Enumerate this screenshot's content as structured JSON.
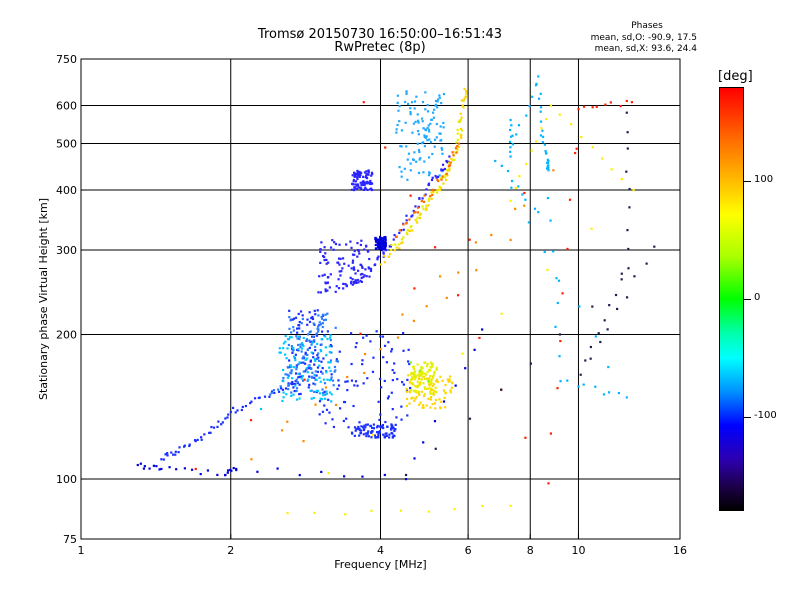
{
  "header": {
    "title_line1": "Tromsø 20150730 16:50:00–16:51:43",
    "title_line2": "RwPretec (8p)",
    "phases_title": "Phases",
    "stat_o": "mean, sd,O: -90.9, 17.5",
    "stat_x": "mean, sd,X:  93.6, 24.4"
  },
  "colorbar": {
    "unit": "[deg]",
    "tick_labels": [
      "100",
      "0",
      "-100"
    ],
    "tick_values": [
      100,
      0,
      -100
    ],
    "range": [
      -180,
      180
    ],
    "stops": [
      "#000000",
      "#2c00b0",
      "#0000ff",
      "#0090ff",
      "#00ffff",
      "#00ffaa",
      "#00ff00",
      "#a8ff00",
      "#ffff00",
      "#ffcc00",
      "#ff6a00",
      "#ff0000"
    ]
  },
  "chart_data": {
    "type": "scatter",
    "title": "Tromsø 20150730 16:50:00–16:51:43",
    "subtitle": "RwPretec (8p)",
    "xlabel": "Frequency [MHz]",
    "ylabel": "Stationary phase Virtual Height [km]",
    "x_scale": "log",
    "y_scale": "log",
    "xlim": [
      1,
      16
    ],
    "ylim": [
      75,
      750
    ],
    "x_ticks": [
      1,
      2,
      4,
      6,
      8,
      10,
      16
    ],
    "y_ticks": [
      75,
      100,
      200,
      300,
      400,
      500,
      600,
      750
    ],
    "x_gridlines": [
      2,
      4,
      6,
      8,
      10
    ],
    "y_gridlines": [
      100,
      200,
      300,
      400,
      500,
      600
    ],
    "grid": true,
    "color_axis": "Phase [deg]",
    "series": [
      {
        "color": "#1a2fff",
        "trace": [
          [
            1.45,
            110
          ],
          [
            1.55,
            114
          ],
          [
            1.7,
            120
          ],
          [
            1.85,
            128
          ],
          [
            2.0,
            138
          ],
          [
            2.2,
            145
          ],
          [
            2.5,
            152
          ],
          [
            2.7,
            160
          ],
          [
            2.9,
            170
          ]
        ],
        "ranges": [
          [
            2.6,
            3.1,
            150,
            225
          ],
          [
            3.0,
            4.6,
            128,
            205
          ],
          [
            3.5,
            4.3,
            122,
            130
          ]
        ]
      },
      {
        "color": "#2a7dff",
        "trace": [
          [
            2.4,
            150
          ],
          [
            2.6,
            165
          ],
          [
            2.8,
            180
          ],
          [
            3.0,
            205
          ],
          [
            3.1,
            220
          ]
        ],
        "ranges": [
          [
            2.6,
            3.3,
            150,
            225
          ]
        ]
      },
      {
        "color": "#22aaff",
        "trace": [
          [
            4.6,
            440
          ],
          [
            4.9,
            520
          ],
          [
            5.1,
            580
          ],
          [
            5.25,
            630
          ]
        ],
        "ranges": [
          [
            4.3,
            5.4,
            420,
            650
          ]
        ]
      },
      {
        "color": "#2a24ff",
        "trace": [
          [
            3.0,
            245
          ],
          [
            3.3,
            250
          ],
          [
            3.6,
            260
          ],
          [
            3.9,
            280
          ],
          [
            4.1,
            300
          ],
          [
            4.4,
            330
          ],
          [
            4.7,
            370
          ],
          [
            5.0,
            410
          ],
          [
            5.3,
            440
          ],
          [
            5.5,
            470
          ]
        ],
        "ranges": [
          [
            3.0,
            3.8,
            255,
            315
          ],
          [
            3.5,
            3.85,
            400,
            440
          ]
        ]
      },
      {
        "color": "#ffd400",
        "trace": [
          [
            4.0,
            280
          ],
          [
            4.4,
            310
          ],
          [
            4.8,
            350
          ],
          [
            5.2,
            400
          ],
          [
            5.5,
            440
          ],
          [
            5.8,
            520
          ],
          [
            5.85,
            600
          ],
          [
            5.9,
            650
          ]
        ],
        "ranges": [
          [
            4.5,
            5.6,
            140,
            165
          ]
        ]
      },
      {
        "color": "#e4f000",
        "trace": [
          [
            4.2,
            300
          ],
          [
            4.6,
            335
          ],
          [
            5.0,
            380
          ],
          [
            5.4,
            430
          ],
          [
            5.7,
            480
          ],
          [
            5.8,
            560
          ]
        ],
        "ranges": [
          [
            4.6,
            5.2,
            150,
            175
          ]
        ]
      },
      {
        "color": "#ff6a00",
        "trace": [
          [
            4.3,
            320
          ],
          [
            4.7,
            360
          ],
          [
            5.1,
            400
          ],
          [
            5.5,
            450
          ],
          [
            5.75,
            500
          ]
        ],
        "ranges": []
      },
      {
        "color": "#00c8ff",
        "trace": [
          [
            2.3,
            140
          ],
          [
            2.55,
            160
          ],
          [
            2.75,
            175
          ]
        ],
        "ranges": [
          [
            2.5,
            3.2,
            145,
            200
          ]
        ]
      },
      {
        "color": "#0000dd",
        "trace": [
          [
            1.3,
            107
          ],
          [
            1.45,
            105
          ],
          [
            1.95,
            102
          ],
          [
            2.05,
            105
          ],
          [
            4.5,
            100
          ],
          [
            6.4,
            205
          ]
        ],
        "ranges": [
          [
            3.9,
            4.1,
            300,
            320
          ]
        ]
      },
      {
        "color": "#7fff00",
        "trace": [
          [
            4.6,
            175
          ],
          [
            4.8,
            168
          ],
          [
            5.0,
            160
          ]
        ],
        "ranges": []
      },
      {
        "color": "#00b4ff",
        "trace": [
          [
            7.3,
            560
          ],
          [
            7.3,
            470
          ],
          [
            8.3,
            690
          ],
          [
            8.4,
            520
          ],
          [
            8.7,
            460
          ],
          [
            8.7,
            440
          ],
          [
            9.2,
            160
          ],
          [
            12.5,
            148
          ],
          [
            6.8,
            460
          ],
          [
            8.3,
            360
          ]
        ],
        "ranges": []
      },
      {
        "color": "#ff2000",
        "trace": [
          [
            3.7,
            610
          ],
          [
            8.7,
            98
          ],
          [
            10.0,
            590
          ],
          [
            12.8,
            610
          ],
          [
            1.7,
            105
          ]
        ],
        "ranges": []
      },
      {
        "color": "#ffee00",
        "trace": [
          [
            7.3,
            380
          ],
          [
            8.8,
            600
          ],
          [
            12.9,
            400
          ],
          [
            2.6,
            85
          ],
          [
            7.3,
            88
          ]
        ],
        "ranges": []
      },
      {
        "color": "#ff8800",
        "trace": [
          [
            7.3,
            315
          ],
          [
            2.2,
            110
          ],
          [
            8.9,
            440
          ],
          [
            2.8,
            120
          ]
        ],
        "ranges": []
      },
      {
        "color": "#202050",
        "trace": [
          [
            12.5,
            580
          ],
          [
            12.6,
            275
          ],
          [
            10.1,
            165
          ],
          [
            14.2,
            305
          ],
          [
            4.5,
            102
          ]
        ],
        "ranges": []
      }
    ]
  }
}
